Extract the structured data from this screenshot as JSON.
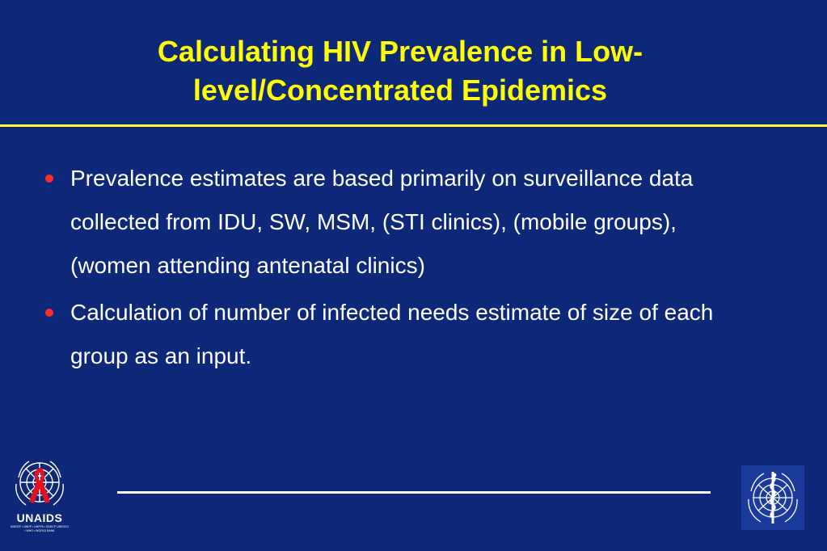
{
  "slide": {
    "title": "Calculating HIV Prevalence in Low-level/Concentrated Epidemics",
    "bullets": [
      "Prevalence estimates are based primarily on surveillance data collected from IDU, SW, MSM, (STI clinics), (mobile groups), (women attending antenatal clinics)",
      "Calculation of number of infected needs estimate of size of each group as an input."
    ]
  },
  "logos": {
    "left_wordmark": "UNAIDS",
    "left_members": "UNICEF • UNDP • UNFPA • UNDCP UNESCO • WHO • WORLD BANK"
  },
  "colors": {
    "background": "#0d2878",
    "title": "#ffff00",
    "bullet_dot": "#ff2a2a",
    "text": "#ffffff"
  }
}
